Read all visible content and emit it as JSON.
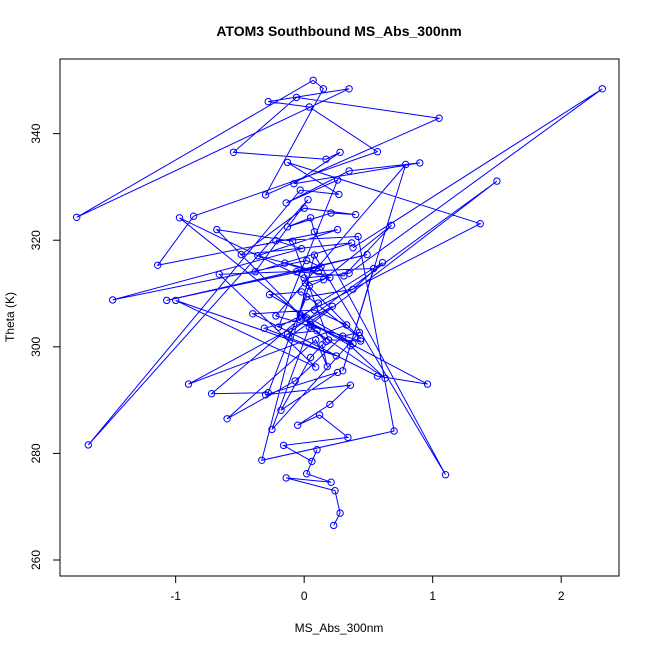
{
  "chart_data": {
    "type": "line",
    "title": "ATOM3 Southbound MS_Abs_300nm",
    "xlabel": "MS_Abs_300nm",
    "ylabel": "Theta (K)",
    "xlim": [
      -1.9,
      2.45
    ],
    "ylim": [
      257,
      354
    ],
    "xticks": [
      -1,
      0,
      1,
      2
    ],
    "yticks": [
      260,
      280,
      300,
      320,
      340
    ],
    "grid": false,
    "markers": "open-circle",
    "line_color": "#0000ff",
    "series": [
      {
        "x": [
          0.23,
          0.28,
          0.24,
          -0.14,
          0.21,
          0.02,
          0.1,
          0.06,
          -0.16,
          0.34,
          0.12,
          -0.05,
          0.2,
          0.36,
          -0.3,
          0.26,
          -0.18,
          0.05,
          0.14,
          0.18,
          0.09,
          -0.6,
          -0.07,
          0.3,
          0.43,
          -0.25,
          0.04,
          0.63,
          0.36,
          -0.02,
          0.96,
          0.57,
          -0.4,
          0.08,
          0.33,
          -0.9,
          0.22,
          -0.12,
          0.02,
          0.38,
          0.61,
          0.11,
          -0.72,
          -0.28,
          0.04,
          0.15,
          0.68,
          0.31,
          -0.06,
          0.49,
          -1.07,
          0.13,
          0.02,
          -1.49,
          -0.02,
          -0.22,
          0.42,
          0.7,
          -0.33,
          0.08,
          1.1,
          0.08,
          0.05,
          -0.13,
          0.21,
          0.4,
          0.0,
          -0.49,
          0.37,
          -0.38,
          0.03,
          -1.68,
          -0.03,
          0.27,
          -0.13,
          1.37,
          -0.2,
          0.26,
          -0.14,
          0.35,
          0.9,
          -0.08,
          0.28,
          0.17,
          -0.55,
          -0.06,
          1.05,
          -0.3,
          0.15,
          0.07,
          -1.77,
          0.35,
          -0.28,
          0.04,
          0.57,
          -0.86,
          -1.14,
          0.26,
          -0.36,
          0.11,
          -0.15,
          0.2,
          0.01,
          0.44,
          -0.02,
          -0.27,
          0.38,
          0.05,
          1.5,
          -0.13,
          0.1,
          0.17,
          -0.68,
          -0.09,
          0.19,
          0.44,
          -0.22,
          0.79,
          0.3,
          0.54,
          -0.66,
          0.09,
          -1.0,
          0.25,
          -0.31,
          0.02,
          -0.03,
          -0.97,
          0.0,
          0.35,
          2.32,
          0.38
        ],
        "y": [
          266.5,
          268.8,
          273.0,
          275.4,
          274.6,
          276.2,
          280.7,
          278.5,
          281.5,
          283.0,
          287.2,
          285.3,
          289.2,
          292.8,
          291.0,
          295.2,
          288.1,
          298.0,
          300.4,
          296.3,
          301.3,
          286.5,
          293.6,
          302.0,
          302.7,
          284.5,
          303.7,
          294.1,
          300.2,
          305.4,
          293.0,
          294.5,
          306.2,
          306.9,
          304.1,
          293.0,
          307.6,
          301.8,
          309.4,
          310.8,
          315.8,
          308.2,
          291.2,
          291.4,
          311.4,
          312.6,
          322.8,
          313.3,
          314.1,
          317.3,
          308.7,
          315.0,
          316.2,
          308.8,
          318.4,
          319.9,
          320.7,
          284.2,
          278.7,
          317.2,
          276.0,
          321.6,
          324.2,
          322.5,
          325.1,
          324.8,
          326.0,
          317.3,
          319.5,
          314.1,
          327.6,
          281.6,
          329.4,
          328.6,
          334.6,
          323.1,
          303.7,
          331.3,
          327.0,
          333.0,
          334.5,
          330.6,
          336.5,
          335.2,
          336.5,
          346.8,
          342.9,
          328.5,
          348.4,
          350.0,
          324.3,
          348.4,
          346.0,
          345.0,
          336.6,
          324.5,
          315.3,
          322.0,
          317.1,
          314.1,
          315.7,
          313.0,
          312.0,
          301.5,
          310.3,
          309.8,
          300.6,
          304.2,
          331.1,
          302.4,
          303.0,
          301.0,
          322.0,
          319.8,
          301.3,
          301.1,
          305.8,
          334.2,
          295.5,
          314.7,
          313.6,
          296.2,
          308.7,
          298.3,
          303.5,
          305.4,
          306.0,
          324.2,
          312.9,
          313.8,
          348.4,
          318.6
        ]
      }
    ]
  }
}
